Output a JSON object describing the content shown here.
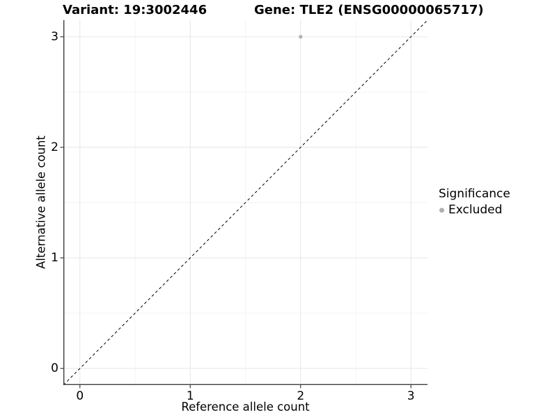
{
  "titles": {
    "variant": "Variant: 19:3002446",
    "gene": "Gene: TLE2 (ENSG00000065717)"
  },
  "chart_data": {
    "type": "scatter",
    "titles": [
      "Variant: 19:3002446",
      "Gene: TLE2 (ENSG00000065717)"
    ],
    "xlabel": "Reference allele count",
    "ylabel": "Alternative allele count",
    "xlim": [
      -0.15,
      3.15
    ],
    "ylim": [
      -0.15,
      3.15
    ],
    "x_ticks": [
      0,
      1,
      2,
      3
    ],
    "y_ticks": [
      0,
      1,
      2,
      3
    ],
    "x_minor_ticks": [
      0.5,
      1.5,
      2.5
    ],
    "y_minor_ticks": [
      0.5,
      1.5,
      2.5
    ],
    "grid": "major and minor gridlines, white panel",
    "reference_line": {
      "type": "identity y=x across full panel",
      "style": "dashed",
      "color": "#000000"
    },
    "series": [
      {
        "name": "Excluded",
        "color": "#b3b3b3",
        "marker": "circle",
        "points": [
          {
            "x": 2,
            "y": 3
          }
        ]
      }
    ],
    "legend": {
      "title": "Significance",
      "position": "right",
      "items": [
        {
          "label": "Excluded",
          "color": "#b0b0b0"
        }
      ]
    }
  },
  "colors": {
    "grid_major": "#e8e8e8",
    "grid_minor": "#f3f3f3",
    "axis_line": "#3c3c3c",
    "text": "#000000",
    "point": "#b3b3b3"
  }
}
